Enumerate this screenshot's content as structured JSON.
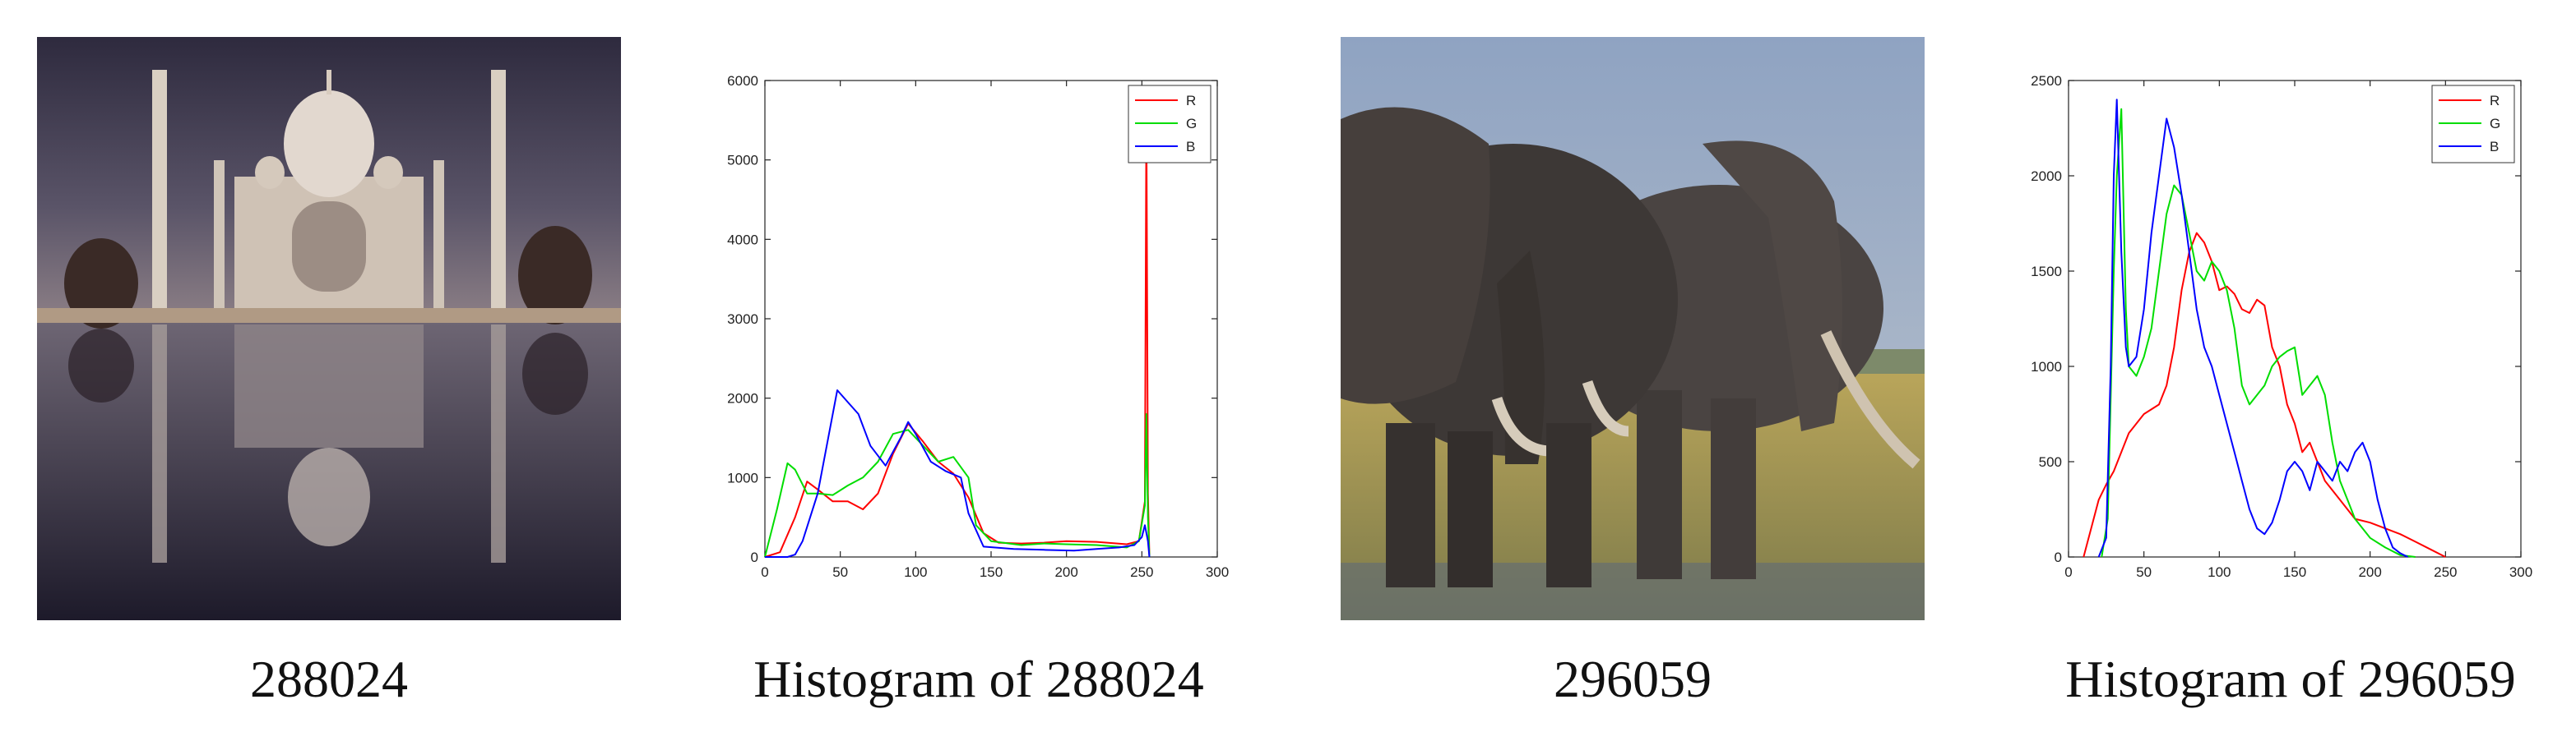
{
  "panels": {
    "img1_caption": "288024",
    "hist1_caption": "Histogram of 288024",
    "img2_caption": "296059",
    "hist2_caption": "Histogram of 296059"
  },
  "chart_data": [
    {
      "type": "line",
      "title": "Histogram of 288024",
      "xlabel": "",
      "ylabel": "",
      "xlim": [
        0,
        300
      ],
      "ylim": [
        0,
        6000
      ],
      "xticks": [
        0,
        50,
        100,
        150,
        200,
        250,
        300
      ],
      "yticks": [
        0,
        1000,
        2000,
        3000,
        4000,
        5000,
        6000
      ],
      "legend": [
        "R",
        "G",
        "B"
      ],
      "legend_position": "top-right",
      "colors": {
        "R": "#ff0000",
        "G": "#00dd00",
        "B": "#0000ff"
      },
      "series": [
        {
          "name": "R",
          "x": [
            0,
            10,
            20,
            28,
            35,
            45,
            55,
            65,
            75,
            85,
            95,
            105,
            115,
            125,
            135,
            145,
            155,
            170,
            185,
            200,
            220,
            240,
            248,
            252,
            253,
            254,
            255
          ],
          "y": [
            0,
            60,
            500,
            950,
            850,
            700,
            700,
            600,
            800,
            1300,
            1680,
            1450,
            1200,
            1050,
            750,
            300,
            180,
            170,
            180,
            200,
            190,
            160,
            200,
            700,
            5650,
            800,
            0
          ]
        },
        {
          "name": "G",
          "x": [
            0,
            8,
            15,
            20,
            28,
            35,
            45,
            55,
            65,
            75,
            85,
            95,
            105,
            115,
            125,
            135,
            140,
            150,
            170,
            185,
            200,
            220,
            240,
            248,
            252,
            253,
            254,
            255
          ],
          "y": [
            0,
            600,
            1180,
            1100,
            800,
            800,
            780,
            900,
            1000,
            1200,
            1550,
            1600,
            1400,
            1200,
            1260,
            1000,
            400,
            200,
            150,
            170,
            160,
            150,
            120,
            200,
            650,
            1800,
            500,
            0
          ]
        },
        {
          "name": "B",
          "x": [
            0,
            15,
            20,
            25,
            35,
            42,
            48,
            55,
            62,
            70,
            80,
            90,
            95,
            100,
            110,
            120,
            130,
            135,
            145,
            165,
            185,
            205,
            220,
            235,
            245,
            250,
            252,
            254,
            255
          ],
          "y": [
            0,
            0,
            30,
            200,
            800,
            1500,
            2100,
            1950,
            1800,
            1400,
            1150,
            1500,
            1700,
            1550,
            1200,
            1080,
            1000,
            550,
            130,
            100,
            90,
            80,
            100,
            120,
            150,
            250,
            400,
            200,
            0
          ]
        }
      ]
    },
    {
      "type": "line",
      "title": "Histogram of 296059",
      "xlabel": "",
      "ylabel": "",
      "xlim": [
        0,
        300
      ],
      "ylim": [
        0,
        2500
      ],
      "xticks": [
        0,
        50,
        100,
        150,
        200,
        250,
        300
      ],
      "yticks": [
        0,
        500,
        1000,
        1500,
        2000,
        2500
      ],
      "legend": [
        "R",
        "G",
        "B"
      ],
      "legend_position": "top-right",
      "colors": {
        "R": "#ff0000",
        "G": "#00dd00",
        "B": "#0000ff"
      },
      "series": [
        {
          "name": "R",
          "x": [
            10,
            15,
            20,
            25,
            30,
            40,
            50,
            60,
            65,
            70,
            75,
            80,
            85,
            90,
            95,
            100,
            105,
            110,
            115,
            120,
            125,
            130,
            135,
            140,
            145,
            150,
            155,
            160,
            170,
            180,
            190,
            200,
            210,
            220,
            230,
            240,
            250
          ],
          "y": [
            0,
            150,
            300,
            380,
            450,
            650,
            750,
            800,
            900,
            1100,
            1400,
            1600,
            1700,
            1650,
            1550,
            1400,
            1420,
            1380,
            1300,
            1280,
            1350,
            1320,
            1100,
            1000,
            800,
            700,
            550,
            600,
            400,
            300,
            200,
            180,
            150,
            120,
            80,
            40,
            0
          ]
        },
        {
          "name": "G",
          "x": [
            22,
            26,
            30,
            32,
            35,
            38,
            40,
            45,
            50,
            55,
            60,
            65,
            70,
            75,
            80,
            85,
            90,
            95,
            100,
            105,
            110,
            115,
            120,
            125,
            130,
            135,
            140,
            145,
            150,
            155,
            160,
            165,
            170,
            175,
            180,
            185,
            190,
            200,
            210,
            220,
            230
          ],
          "y": [
            0,
            200,
            1500,
            2000,
            2350,
            1300,
            1000,
            950,
            1050,
            1200,
            1500,
            1800,
            1950,
            1900,
            1700,
            1500,
            1450,
            1550,
            1500,
            1400,
            1200,
            900,
            800,
            850,
            900,
            1000,
            1050,
            1080,
            1100,
            850,
            900,
            950,
            850,
            600,
            400,
            300,
            200,
            100,
            50,
            10,
            0
          ]
        },
        {
          "name": "B",
          "x": [
            20,
            25,
            28,
            30,
            32,
            35,
            38,
            40,
            45,
            50,
            55,
            60,
            65,
            70,
            75,
            80,
            85,
            90,
            95,
            100,
            105,
            110,
            115,
            120,
            125,
            130,
            135,
            140,
            145,
            150,
            155,
            160,
            165,
            170,
            175,
            180,
            185,
            190,
            195,
            200,
            205,
            210,
            215,
            220,
            225
          ],
          "y": [
            0,
            100,
            1000,
            2000,
            2400,
            1600,
            1100,
            1000,
            1050,
            1300,
            1700,
            2000,
            2300,
            2150,
            1900,
            1600,
            1300,
            1100,
            1000,
            850,
            700,
            550,
            400,
            250,
            150,
            120,
            180,
            300,
            450,
            500,
            450,
            350,
            500,
            450,
            400,
            500,
            450,
            550,
            600,
            500,
            300,
            150,
            50,
            20,
            0
          ]
        }
      ]
    }
  ]
}
